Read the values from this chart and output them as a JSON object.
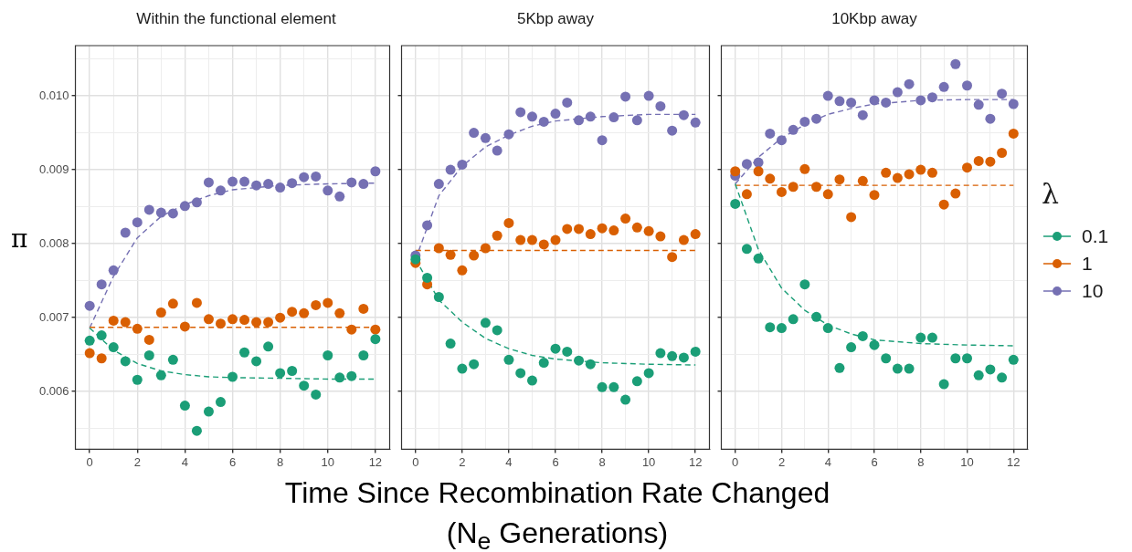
{
  "chart_data": [
    {
      "type": "scatter",
      "title": "Within the functional element",
      "ylabel": "π",
      "x": [
        0,
        0.5,
        1,
        1.5,
        2,
        2.5,
        3,
        3.5,
        4,
        4.5,
        5,
        5.5,
        6,
        6.5,
        7,
        7.5,
        8,
        8.5,
        9,
        9.5,
        10,
        10.5,
        11,
        11.5,
        12
      ],
      "marker": "circle",
      "series": [
        {
          "type": "scatter",
          "color": "#1b9e77",
          "values": [
            0.00669,
            0.00676,
            0.0066,
            0.00641,
            0.00616,
            0.00649,
            0.00622,
            0.00643,
            0.00581,
            0.00547,
            0.00573,
            0.00586,
            0.0062,
            0.00653,
            0.00641,
            0.00661,
            0.00625,
            0.00628,
            0.00608,
            0.00596,
            0.00649,
            0.00619,
            0.00621,
            0.00649,
            0.00671
          ]
        },
        {
          "type": "scatter",
          "color": "#d95f02",
          "values": [
            0.00652,
            0.00645,
            0.00696,
            0.00694,
            0.00685,
            0.0067,
            0.00707,
            0.00719,
            0.00688,
            0.0072,
            0.00698,
            0.00692,
            0.00698,
            0.00697,
            0.00694,
            0.00694,
            0.007,
            0.00708,
            0.00706,
            0.00717,
            0.0072,
            0.00706,
            0.00684,
            0.00712,
            0.00684
          ]
        },
        {
          "type": "scatter",
          "color": "#7570b3",
          "values": [
            0.00716,
            0.00745,
            0.00764,
            0.00815,
            0.00829,
            0.00846,
            0.00842,
            0.00841,
            0.00851,
            0.00856,
            0.00883,
            0.00872,
            0.00884,
            0.00884,
            0.00879,
            0.00881,
            0.00876,
            0.00882,
            0.0089,
            0.00891,
            0.00872,
            0.00864,
            0.00883,
            0.00881,
            0.00898
          ]
        },
        {
          "type": "line",
          "color": "#1b9e77",
          "line_style": "dashed",
          "marker": "none",
          "x": [
            0,
            1,
            2,
            3,
            4,
            5,
            6,
            8,
            10,
            12
          ],
          "values": [
            0.00686,
            0.00656,
            0.00638,
            0.00628,
            0.00623,
            0.0062,
            0.00619,
            0.00618,
            0.00617,
            0.00617
          ]
        },
        {
          "type": "line",
          "color": "#d95f02",
          "line_style": "dashed",
          "marker": "none",
          "x": [
            0,
            12
          ],
          "values": [
            0.00687,
            0.00687
          ]
        },
        {
          "type": "line",
          "color": "#7570b3",
          "line_style": "dashed",
          "marker": "none",
          "x": [
            0,
            1,
            2,
            3,
            4,
            5,
            6,
            8,
            10,
            12
          ],
          "values": [
            0.00686,
            0.00756,
            0.00808,
            0.00837,
            0.00853,
            0.00865,
            0.00873,
            0.00879,
            0.00881,
            0.00882
          ]
        }
      ],
      "xlim": [
        -0.6,
        12.6
      ],
      "ylim": [
        0.00522,
        0.01068
      ],
      "xticks": [
        0,
        {
          "value": 1,
          "label": null
        },
        2,
        {
          "value": 3,
          "label": null
        },
        4,
        {
          "value": 5,
          "label": null
        },
        6,
        {
          "value": 7,
          "label": null
        },
        8,
        {
          "value": 9,
          "label": null
        },
        10,
        {
          "value": 11,
          "label": null
        },
        12
      ],
      "yticks": [
        {
          "value": 0.0055,
          "label": null
        },
        0.006,
        {
          "value": 0.0065,
          "label": null
        },
        0.007,
        {
          "value": 0.0075,
          "label": null
        },
        0.008,
        {
          "value": 0.0085,
          "label": null
        },
        0.009,
        {
          "value": 0.0095,
          "label": null
        },
        {
          "value": 0.01,
          "label": "0.010"
        },
        {
          "value": 0.0105,
          "label": null
        }
      ],
      "grid": true
    },
    {
      "type": "scatter",
      "title": "5Kbp away",
      "xlabel": "Time Since Recombination Rate Changed\n(N$_{e}$ Generations)",
      "x": [
        0,
        0.5,
        1,
        1.5,
        2,
        2.5,
        3,
        3.5,
        4,
        4.5,
        5,
        5.5,
        6,
        6.5,
        7,
        7.5,
        8,
        8.5,
        9,
        9.5,
        10,
        10.5,
        11,
        11.5,
        12
      ],
      "marker": "circle",
      "series": [
        {
          "type": "scatter",
          "color": "#1b9e77",
          "values": [
            0.00779,
            0.00754,
            0.00728,
            0.00665,
            0.00631,
            0.00637,
            0.00693,
            0.00683,
            0.00643,
            0.00625,
            0.00615,
            0.00639,
            0.00658,
            0.00654,
            0.00642,
            0.00637,
            0.00606,
            0.00606,
            0.00589,
            0.00614,
            0.00625,
            0.00652,
            0.00648,
            0.00646,
            0.00654
          ]
        },
        {
          "type": "scatter",
          "color": "#d95f02",
          "values": [
            0.00774,
            0.00745,
            0.00794,
            0.00785,
            0.00764,
            0.00784,
            0.00794,
            0.00811,
            0.00828,
            0.00805,
            0.00805,
            0.00799,
            0.00805,
            0.0082,
            0.0082,
            0.00813,
            0.00821,
            0.00818,
            0.00834,
            0.00822,
            0.00817,
            0.0081,
            0.00782,
            0.00805,
            0.00813
          ]
        },
        {
          "type": "scatter",
          "color": "#7570b3",
          "values": [
            0.00784,
            0.00825,
            0.00881,
            0.009,
            0.00907,
            0.0095,
            0.00943,
            0.00926,
            0.00948,
            0.00978,
            0.00972,
            0.00965,
            0.00976,
            0.00991,
            0.00967,
            0.00972,
            0.0094,
            0.00971,
            0.00999,
            0.00967,
            0.01,
            0.00986,
            0.00953,
            0.00974,
            0.00964
          ]
        },
        {
          "type": "line",
          "color": "#1b9e77",
          "line_style": "dashed",
          "marker": "none",
          "x": [
            0,
            1,
            2,
            3,
            4,
            5,
            6,
            8,
            10,
            12
          ],
          "values": [
            0.00779,
            0.00724,
            0.00694,
            0.00672,
            0.00658,
            0.00649,
            0.00644,
            0.00639,
            0.00637,
            0.00636
          ]
        },
        {
          "type": "line",
          "color": "#d95f02",
          "line_style": "dashed",
          "marker": "none",
          "x": [
            0,
            12
          ],
          "values": [
            0.00791,
            0.00791
          ]
        },
        {
          "type": "line",
          "color": "#7570b3",
          "line_style": "dashed",
          "marker": "none",
          "x": [
            0,
            1,
            2,
            3,
            4,
            5,
            6,
            8,
            10,
            12
          ],
          "values": [
            0.00779,
            0.00865,
            0.00905,
            0.00931,
            0.00947,
            0.00959,
            0.00966,
            0.00972,
            0.00975,
            0.00975
          ]
        }
      ],
      "xlim": [
        -0.6,
        12.6
      ],
      "ylim": [
        0.00522,
        0.01068
      ],
      "xticks": [
        0,
        {
          "value": 1,
          "label": null
        },
        2,
        {
          "value": 3,
          "label": null
        },
        4,
        {
          "value": 5,
          "label": null
        },
        6,
        {
          "value": 7,
          "label": null
        },
        8,
        {
          "value": 9,
          "label": null
        },
        10,
        {
          "value": 11,
          "label": null
        },
        12
      ],
      "yticks": [
        {
          "value": 0.0055,
          "label": null
        },
        0.006,
        {
          "value": 0.0065,
          "label": null
        },
        0.007,
        {
          "value": 0.0075,
          "label": null
        },
        0.008,
        {
          "value": 0.0085,
          "label": null
        },
        0.009,
        {
          "value": 0.0095,
          "label": null
        },
        0.01,
        {
          "value": 0.0105,
          "label": null
        }
      ],
      "grid": true,
      "tick_labels": "x"
    },
    {
      "type": "scatter",
      "title": "10Kbp away",
      "legend_title": "λ",
      "legend": "right",
      "x": [
        0,
        0.5,
        1,
        1.5,
        2,
        2.5,
        3,
        3.5,
        4,
        4.5,
        5,
        5.5,
        6,
        6.5,
        7,
        7.5,
        8,
        8.5,
        9,
        9.5,
        10,
        10.5,
        11,
        11.5,
        12
      ],
      "marker": "circle",
      "series": [
        {
          "type": "scatter",
          "name": "0.1",
          "color": "#1b9e77",
          "values": [
            0.00854,
            0.00793,
            0.0078,
            0.00687,
            0.00686,
            0.00698,
            0.00745,
            0.00701,
            0.00686,
            0.00632,
            0.0066,
            0.00675,
            0.00663,
            0.00645,
            0.00631,
            0.00631,
            0.00673,
            0.00673,
            0.0061,
            0.00645,
            0.00645,
            0.00622,
            0.0063,
            0.00619,
            0.00643
          ]
        },
        {
          "type": "scatter",
          "name": "1",
          "color": "#d95f02",
          "values": [
            0.00898,
            0.00867,
            0.00898,
            0.00888,
            0.0087,
            0.00877,
            0.00901,
            0.00877,
            0.00867,
            0.00887,
            0.00836,
            0.00885,
            0.00866,
            0.00896,
            0.00889,
            0.00894,
            0.009,
            0.00896,
            0.00853,
            0.00868,
            0.00903,
            0.00912,
            0.00911,
            0.00923,
            0.00949
          ]
        },
        {
          "type": "scatter",
          "name": "10",
          "color": "#7570b3",
          "values": [
            0.00892,
            0.00908,
            0.0091,
            0.00949,
            0.0094,
            0.00954,
            0.00965,
            0.00969,
            0.01,
            0.00993,
            0.00991,
            0.00974,
            0.00994,
            0.00991,
            0.01005,
            0.01016,
            0.00994,
            0.00998,
            0.01012,
            0.01043,
            0.01014,
            0.00988,
            0.00969,
            0.01003,
            0.00989
          ]
        },
        {
          "type": "line",
          "color": "#1b9e77",
          "line_style": "dashed",
          "marker": "none",
          "x": [
            0,
            1,
            2,
            3,
            4,
            5,
            6,
            8,
            10,
            12
          ],
          "values": [
            0.00881,
            0.00792,
            0.0074,
            0.0071,
            0.0069,
            0.00678,
            0.0067,
            0.00665,
            0.00663,
            0.00662
          ]
        },
        {
          "type": "line",
          "color": "#d95f02",
          "line_style": "dashed",
          "marker": "none",
          "x": [
            0,
            12
          ],
          "values": [
            0.00879,
            0.00879
          ]
        },
        {
          "type": "line",
          "color": "#7570b3",
          "line_style": "dashed",
          "marker": "none",
          "x": [
            0,
            1,
            2,
            3,
            4,
            5,
            6,
            8,
            10,
            12
          ],
          "values": [
            0.00881,
            0.00917,
            0.00943,
            0.00961,
            0.00975,
            0.00983,
            0.00989,
            0.00994,
            0.00995,
            0.00995
          ]
        }
      ],
      "xlim": [
        -0.6,
        12.6
      ],
      "ylim": [
        0.00522,
        0.01068
      ],
      "xticks": [
        0,
        {
          "value": 1,
          "label": null
        },
        2,
        {
          "value": 3,
          "label": null
        },
        4,
        {
          "value": 5,
          "label": null
        },
        6,
        {
          "value": 7,
          "label": null
        },
        8,
        {
          "value": 9,
          "label": null
        },
        10,
        {
          "value": 11,
          "label": null
        },
        12
      ],
      "yticks": [
        {
          "value": 0.0055,
          "label": null
        },
        0.006,
        {
          "value": 0.0065,
          "label": null
        },
        0.007,
        {
          "value": 0.0075,
          "label": null
        },
        0.008,
        {
          "value": 0.0085,
          "label": null
        },
        0.009,
        {
          "value": 0.0095,
          "label": null
        },
        0.01,
        {
          "value": 0.0105,
          "label": null
        }
      ],
      "grid": true,
      "tick_labels": "x"
    }
  ]
}
